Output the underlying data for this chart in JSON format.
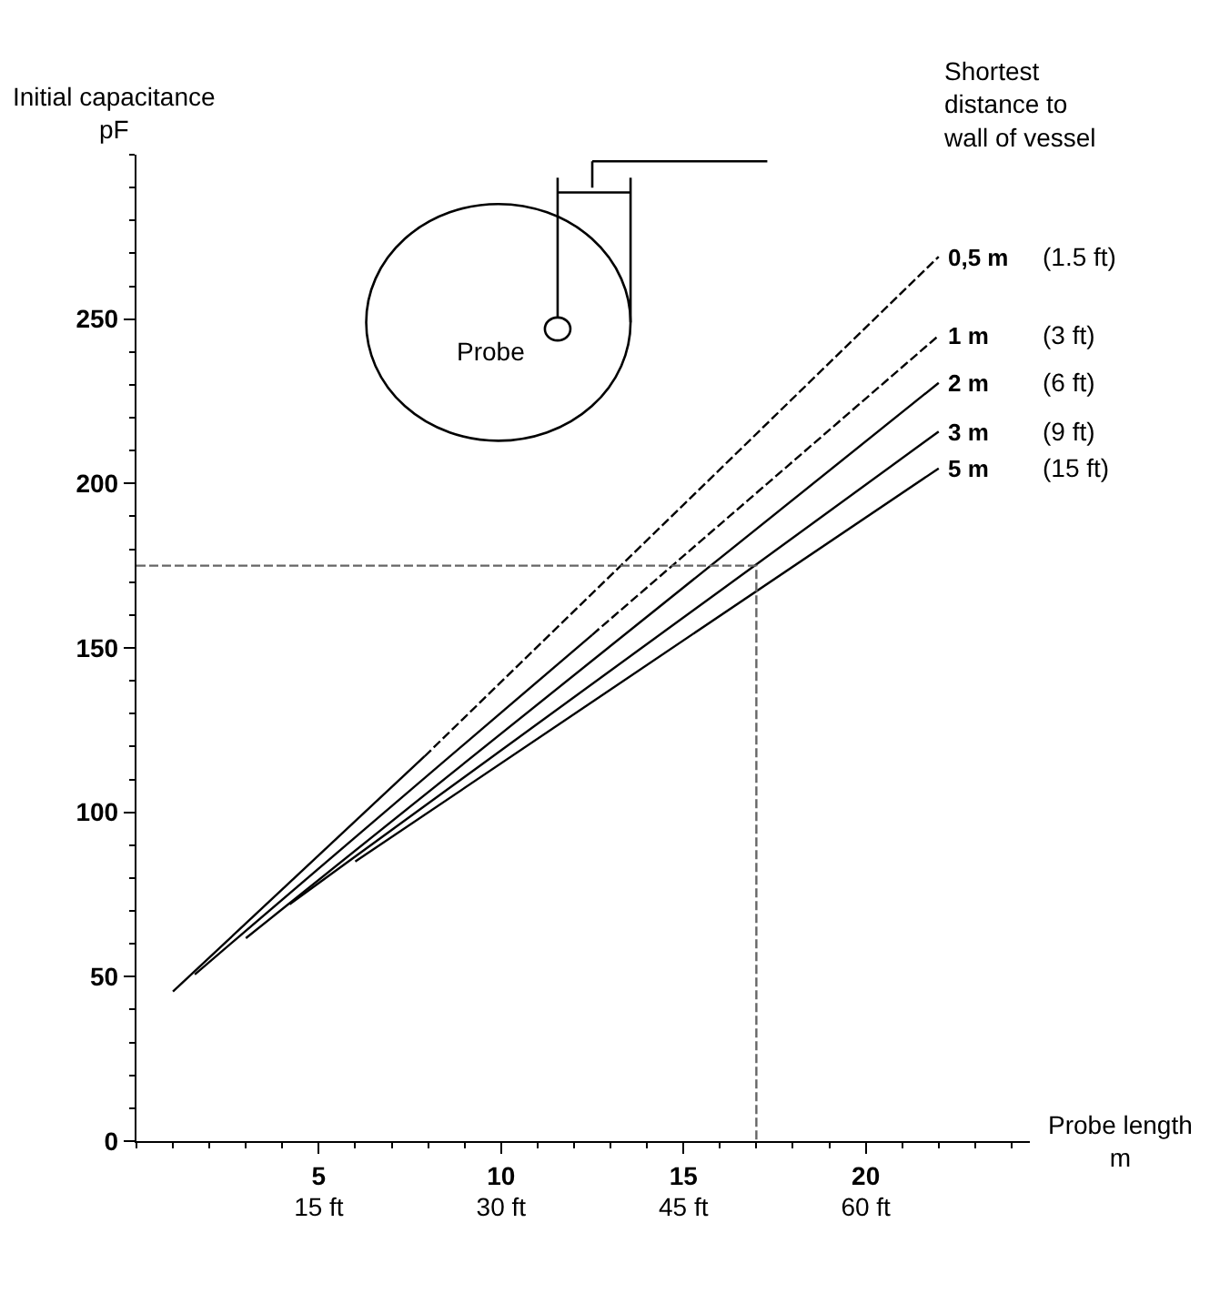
{
  "chart_data": {
    "type": "line",
    "xlabel": "Probe length\nm",
    "ylabel": "Initial capacitance\npF",
    "xlim": [
      0,
      24.5
    ],
    "xticks": [
      5,
      10,
      15,
      20
    ],
    "x2lim": [
      0,
      73.5
    ],
    "x2ticks": [
      {
        "value": 15,
        "label": "15 ft"
      },
      {
        "value": 30,
        "label": "30 ft"
      },
      {
        "value": 45,
        "label": "45 ft"
      },
      {
        "value": 60,
        "label": "60 ft"
      }
    ],
    "ylim": [
      0,
      300
    ],
    "yticks": [
      0,
      50,
      100,
      150,
      200,
      250
    ],
    "legend": false,
    "series": [
      {
        "color": "#000000",
        "line_style": "solid",
        "x": [
          1,
          7.9
        ],
        "values": [
          45.5,
          117
        ]
      },
      {
        "name": "0,5 m",
        "color": "#000000",
        "line_style": "dashed",
        "x": [
          7.9,
          22
        ],
        "values": [
          117,
          269
        ]
      },
      {
        "color": "#000000",
        "line_style": "solid",
        "x": [
          1.6,
          12.5
        ],
        "values": [
          50.7,
          154
        ]
      },
      {
        "name": "1 m",
        "color": "#000000",
        "line_style": "dashed",
        "x": [
          12.5,
          22
        ],
        "values": [
          154,
          245
        ]
      },
      {
        "name": "2 m",
        "color": "#000000",
        "line_style": "solid",
        "x": [
          3,
          22
        ],
        "values": [
          61.7,
          230.6
        ]
      },
      {
        "name": "3 m",
        "color": "#000000",
        "line_style": "solid",
        "x": [
          4.2,
          22
        ],
        "values": [
          72,
          215.8
        ]
      },
      {
        "name": "5 m",
        "color": "#000000",
        "line_style": "solid",
        "x": [
          6,
          22
        ],
        "values": [
          85,
          204.6
        ]
      },
      {
        "color": "#666666",
        "line_style": "dashed",
        "x": [
          0,
          17,
          17
        ],
        "values": [
          175,
          175,
          0
        ]
      }
    ],
    "annotations": [
      "(1.5 ft)",
      "(3 ft)",
      "(6 ft)",
      "(9 ft)",
      "(15 ft)",
      "Probe",
      "Shortest\ndistance to\nwall of vessel"
    ]
  }
}
